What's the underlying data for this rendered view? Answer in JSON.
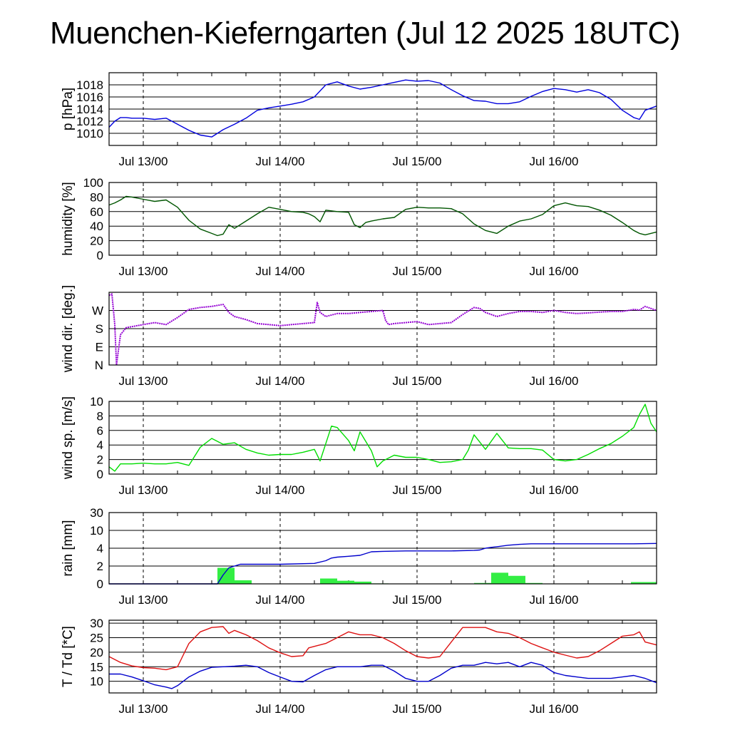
{
  "title": "Muenchen-Kieferngarten (Jul 12 2025 18UTC)",
  "colors": {
    "pressure": "#0000dd",
    "humidity": "#005500",
    "wind_dir": "#9400d3",
    "wind_speed": "#00dd00",
    "rain_bars": "#33ee44",
    "rain_cum": "#0000cc",
    "temperature": "#dd1111",
    "dewpoint": "#0000cc"
  },
  "chart_data": [
    {
      "type": "line",
      "ylabel": "p [hPa]",
      "ylim": [
        1008,
        1020
      ],
      "yticks": [
        "1010",
        "1012",
        "1014",
        "1016",
        "1018"
      ],
      "yticks_v": [
        1010,
        1012,
        1014,
        1016,
        1018
      ],
      "xlim": [
        0,
        96
      ],
      "x_dates": [
        "Jul 13/00",
        "Jul 14/00",
        "Jul 15/00",
        "Jul 16/00"
      ],
      "x_date_pos": [
        6,
        30,
        54,
        78
      ],
      "grid": true,
      "series": [
        {
          "x": [
            0,
            1,
            2,
            3,
            4,
            6,
            8,
            10,
            12,
            14,
            16,
            18,
            20,
            22,
            24,
            26,
            28,
            30,
            32,
            34,
            36,
            38,
            40,
            42,
            44,
            46,
            48,
            50,
            52,
            54,
            56,
            58,
            60,
            62,
            64,
            66,
            68,
            70,
            72,
            74,
            76,
            78,
            80,
            82,
            84,
            86,
            88,
            90,
            92,
            93,
            94,
            96
          ],
          "y": [
            1011,
            1012,
            1012.6,
            1012.6,
            1012.5,
            1012.5,
            1012.3,
            1012.5,
            1011.5,
            1010.5,
            1009.7,
            1009.4,
            1010.6,
            1011.5,
            1012.5,
            1013.8,
            1014.2,
            1014.5,
            1014.8,
            1015.2,
            1016,
            1018,
            1018.5,
            1017.8,
            1017.3,
            1017.6,
            1018,
            1018.4,
            1018.8,
            1018.6,
            1018.7,
            1018.3,
            1017.2,
            1016.2,
            1015.4,
            1015.3,
            1014.9,
            1014.9,
            1015.2,
            1016.1,
            1016.9,
            1017.4,
            1017.2,
            1016.8,
            1017.2,
            1016.7,
            1015.6,
            1013.8,
            1012.6,
            1012.3,
            1013.8,
            1014.5
          ]
        }
      ]
    },
    {
      "type": "line",
      "ylabel": "humidity [%]",
      "ylim": [
        0,
        100
      ],
      "yticks": [
        "0",
        "20",
        "40",
        "60",
        "80",
        "100"
      ],
      "yticks_v": [
        0,
        20,
        40,
        60,
        80,
        100
      ],
      "xlim": [
        0,
        96
      ],
      "x_dates": [
        "Jul 13/00",
        "Jul 14/00",
        "Jul 15/00",
        "Jul 16/00"
      ],
      "x_date_pos": [
        6,
        30,
        54,
        78
      ],
      "grid": true,
      "series": [
        {
          "x": [
            0,
            1,
            2,
            3,
            4,
            6,
            8,
            10,
            12,
            14,
            16,
            18,
            19,
            20,
            21,
            22,
            24,
            26,
            28,
            30,
            32,
            34,
            35,
            36,
            37,
            38,
            40,
            42,
            43,
            44,
            45,
            46,
            48,
            50,
            52,
            54,
            56,
            58,
            60,
            62,
            64,
            66,
            68,
            70,
            72,
            74,
            76,
            78,
            80,
            82,
            84,
            86,
            88,
            90,
            92,
            93,
            94,
            96
          ],
          "y": [
            69,
            72,
            76,
            81,
            80,
            77,
            74,
            76,
            66,
            48,
            36,
            30,
            27,
            29,
            42,
            37,
            47,
            57,
            66,
            63,
            60,
            59,
            57,
            53,
            46,
            62,
            60,
            59,
            42,
            38,
            45,
            47,
            50,
            52,
            63,
            66,
            65,
            65,
            64,
            57,
            43,
            34,
            30,
            40,
            47,
            50,
            56,
            68,
            72,
            68,
            67,
            62,
            55,
            45,
            34,
            30,
            28,
            32
          ]
        }
      ]
    },
    {
      "type": "scatter",
      "ylabel": "wind dir. [deg.]",
      "ylim": [
        0,
        360
      ],
      "yticks": [
        "N",
        "E",
        "S",
        "W"
      ],
      "yticks_v": [
        0,
        90,
        180,
        270
      ],
      "xlim": [
        0,
        96
      ],
      "x_dates": [
        "Jul 13/00",
        "Jul 14/00",
        "Jul 15/00",
        "Jul 16/00"
      ],
      "x_date_pos": [
        6,
        30,
        54,
        78
      ],
      "grid": true,
      "series": [
        {
          "x": [
            0,
            0.5,
            1,
            1.3,
            2,
            3,
            4,
            6,
            8,
            10,
            12,
            14,
            16,
            18,
            20,
            21,
            22,
            24,
            26,
            28,
            30,
            32,
            34,
            36,
            36.5,
            37,
            38,
            40,
            42,
            44,
            46,
            48,
            48.5,
            49,
            50,
            52,
            54,
            56,
            58,
            60,
            62,
            64,
            65,
            66,
            68,
            70,
            72,
            74,
            76,
            78,
            80,
            82,
            84,
            86,
            88,
            90,
            92,
            93,
            94,
            96
          ],
          "y": [
            345,
            352,
            200,
            0,
            150,
            185,
            190,
            200,
            210,
            200,
            235,
            275,
            285,
            290,
            300,
            260,
            240,
            225,
            205,
            200,
            195,
            200,
            205,
            210,
            310,
            260,
            240,
            255,
            255,
            260,
            265,
            270,
            220,
            200,
            205,
            210,
            215,
            200,
            205,
            210,
            250,
            285,
            280,
            260,
            240,
            255,
            265,
            265,
            260,
            270,
            260,
            255,
            258,
            262,
            265,
            265,
            275,
            272,
            290,
            270
          ]
        }
      ]
    },
    {
      "type": "line",
      "ylabel": "wind sp. [m/s]",
      "ylim": [
        0,
        10
      ],
      "yticks": [
        "0",
        "2",
        "4",
        "6",
        "8",
        "10"
      ],
      "yticks_v": [
        0,
        2,
        4,
        6,
        8,
        10
      ],
      "xlim": [
        0,
        96
      ],
      "x_dates": [
        "Jul 13/00",
        "Jul 14/00",
        "Jul 15/00",
        "Jul 16/00"
      ],
      "x_date_pos": [
        6,
        30,
        54,
        78
      ],
      "grid": true,
      "series": [
        {
          "x": [
            0,
            1,
            2,
            4,
            6,
            8,
            10,
            12,
            14,
            16,
            18,
            20,
            22,
            24,
            26,
            28,
            30,
            32,
            34,
            36,
            37,
            38,
            39,
            40,
            42,
            43,
            44,
            46,
            47,
            48,
            50,
            52,
            54,
            56,
            58,
            60,
            62,
            63,
            64,
            66,
            68,
            70,
            72,
            74,
            76,
            78,
            80,
            82,
            84,
            86,
            88,
            90,
            92,
            93,
            94,
            95,
            96
          ],
          "y": [
            1,
            0.4,
            1.4,
            1.4,
            1.5,
            1.4,
            1.4,
            1.6,
            1.2,
            3.7,
            4.9,
            4.1,
            4.3,
            3.4,
            2.9,
            2.6,
            2.7,
            2.7,
            3.0,
            3.4,
            1.8,
            4.2,
            6.6,
            6.4,
            4.6,
            3.2,
            5.8,
            3.2,
            1.0,
            1.8,
            2.6,
            2.3,
            2.3,
            2.0,
            1.6,
            1.7,
            2.0,
            3.3,
            5.4,
            3.4,
            5.6,
            3.6,
            3.5,
            3.5,
            3.3,
            2.0,
            1.8,
            2.0,
            2.7,
            3.5,
            4.2,
            5.2,
            6.4,
            8.2,
            9.6,
            7.0,
            5.8
          ]
        }
      ]
    },
    {
      "type": "bar",
      "ylabel": "rain [mm]",
      "ylim": [
        0,
        30
      ],
      "yticks": [
        "0",
        "2",
        "4",
        "10",
        "30"
      ],
      "yticks_v": [
        0,
        2,
        4,
        10,
        30
      ],
      "yscale": "piecewise",
      "xlim": [
        0,
        96
      ],
      "x_dates": [
        "Jul 13/00",
        "Jul 14/00",
        "Jul 15/00",
        "Jul 16/00"
      ],
      "x_date_pos": [
        6,
        30,
        54,
        78
      ],
      "grid": true,
      "bars": [
        {
          "x0": 19,
          "x1": 22,
          "v": 1.8
        },
        {
          "x0": 22,
          "x1": 25,
          "v": 0.4
        },
        {
          "x0": 37,
          "x1": 40,
          "v": 0.6
        },
        {
          "x0": 40,
          "x1": 43,
          "v": 0.35
        },
        {
          "x0": 43,
          "x1": 46,
          "v": 0.25
        },
        {
          "x0": 46,
          "x1": 49,
          "v": 0.05
        },
        {
          "x0": 64,
          "x1": 67,
          "v": 0.1
        },
        {
          "x0": 67,
          "x1": 70,
          "v": 1.25
        },
        {
          "x0": 70,
          "x1": 73,
          "v": 0.9
        },
        {
          "x0": 73,
          "x1": 76,
          "v": 0.1
        },
        {
          "x0": 91.5,
          "x1": 96,
          "v": 0.2
        }
      ],
      "series": [
        {
          "x": [
            0,
            19,
            20,
            21,
            22,
            23,
            24,
            30,
            36,
            38,
            39,
            40,
            42,
            44,
            45,
            46,
            48,
            52,
            56,
            60,
            64,
            65,
            66,
            67,
            68,
            70,
            72,
            74,
            76,
            80,
            84,
            88,
            92,
            96
          ],
          "y": [
            0,
            0,
            1,
            1.8,
            2.0,
            2.2,
            2.2,
            2.2,
            2.3,
            2.6,
            2.9,
            3.0,
            3.1,
            3.2,
            3.4,
            3.6,
            3.65,
            3.7,
            3.7,
            3.7,
            3.75,
            3.8,
            4.0,
            4.3,
            4.5,
            5.0,
            5.3,
            5.5,
            5.5,
            5.5,
            5.5,
            5.5,
            5.5,
            5.6
          ]
        }
      ]
    },
    {
      "type": "line",
      "ylabel": "T / Td [*C]",
      "ylim": [
        6,
        31
      ],
      "yticks": [
        "10",
        "15",
        "20",
        "25",
        "30"
      ],
      "yticks_v": [
        10,
        15,
        20,
        25,
        30
      ],
      "xlim": [
        0,
        96
      ],
      "x_dates": [
        "Jul 13/00",
        "Jul 14/00",
        "Jul 15/00",
        "Jul 16/00"
      ],
      "x_date_pos": [
        6,
        30,
        54,
        78
      ],
      "grid": true,
      "series": [
        {
          "name": "T",
          "x": [
            0,
            2,
            4,
            6,
            8,
            10,
            12,
            14,
            16,
            18,
            20,
            21,
            22,
            24,
            26,
            28,
            30,
            32,
            34,
            35,
            36,
            38,
            40,
            42,
            43,
            44,
            46,
            48,
            50,
            52,
            54,
            56,
            58,
            60,
            62,
            64,
            66,
            68,
            70,
            72,
            74,
            76,
            78,
            80,
            82,
            84,
            86,
            88,
            90,
            92,
            93,
            94,
            96
          ],
          "y": [
            18.5,
            16.5,
            15.3,
            14.7,
            14.5,
            14,
            15,
            23,
            27,
            28.5,
            28.8,
            26.5,
            27.5,
            26,
            24,
            21.5,
            19.8,
            18.5,
            18.8,
            21.5,
            22,
            23,
            25,
            27,
            26.5,
            26,
            26,
            25,
            23,
            20.5,
            18.5,
            18,
            18.5,
            23.5,
            28.5,
            28.5,
            28.5,
            27,
            26.5,
            25,
            23,
            21.5,
            20,
            19,
            18,
            18.5,
            20.5,
            23,
            25.5,
            26,
            27,
            23.5,
            22.5
          ]
        },
        {
          "name": "Td",
          "x": [
            0,
            2,
            4,
            6,
            8,
            10,
            11,
            12,
            14,
            16,
            18,
            20,
            22,
            24,
            26,
            28,
            30,
            32,
            34,
            36,
            38,
            40,
            42,
            44,
            46,
            48,
            50,
            52,
            54,
            56,
            58,
            60,
            62,
            64,
            66,
            68,
            70,
            72,
            74,
            76,
            78,
            80,
            82,
            84,
            86,
            88,
            90,
            92,
            94,
            96
          ],
          "y": [
            12.5,
            12.5,
            11.5,
            10.2,
            8.8,
            8,
            7.5,
            8.5,
            11.5,
            13.5,
            14.8,
            15,
            15.2,
            15.5,
            15,
            13,
            11.5,
            10,
            9.8,
            12,
            14,
            15,
            15,
            15,
            15.5,
            15.5,
            13.5,
            11,
            10,
            10,
            12,
            14.5,
            15.5,
            15.5,
            16.5,
            16,
            16.5,
            15,
            16.5,
            15.5,
            13,
            12,
            11.5,
            11,
            11,
            11,
            11.5,
            12,
            11,
            9.5
          ]
        }
      ]
    }
  ]
}
